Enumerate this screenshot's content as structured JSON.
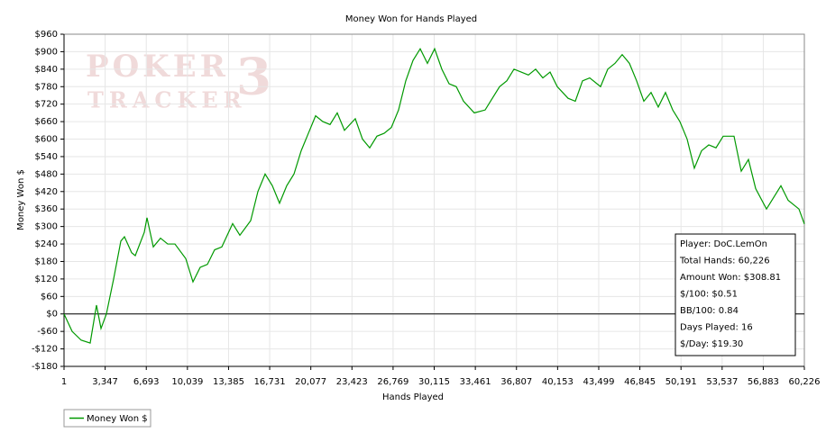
{
  "chart_data": {
    "type": "line",
    "title": "Money Won for Hands Played",
    "xlabel": "Hands Played",
    "ylabel": "Money Won $",
    "watermark": [
      "POKER",
      "TRACKER",
      "3"
    ],
    "x": [
      1,
      661,
      1395,
      2128,
      2642,
      3009,
      3449,
      4036,
      4623,
      4916,
      5503,
      5796,
      6530,
      6750,
      7263,
      7850,
      8437,
      9024,
      9904,
      10491,
      11078,
      11664,
      12251,
      12838,
      13718,
      14305,
      15185,
      15772,
      16359,
      16946,
      17532,
      18119,
      18706,
      19293,
      19880,
      20467,
      21054,
      21640,
      22227,
      22814,
      23694,
      24281,
      24868,
      25455,
      26042,
      26628,
      27215,
      27802,
      28389,
      28976,
      29563,
      30149,
      30736,
      31323,
      31910,
      32497,
      33377,
      34257,
      34844,
      35431,
      36018,
      36605,
      37192,
      37778,
      38365,
      38952,
      39539,
      40126,
      41006,
      41593,
      42180,
      42767,
      43647,
      44234,
      44821,
      45407,
      45994,
      46581,
      47168,
      47755,
      48342,
      48929,
      49516,
      50102,
      50689,
      51276,
      51863,
      52450,
      53037,
      53624,
      54504,
      55091,
      55678,
      56265,
      57145,
      58026,
      58319,
      58906,
      59786,
      60226
    ],
    "series": [
      {
        "name": "Money Won $",
        "color": "#009900",
        "values": [
          0,
          -60,
          -90,
          -100,
          30,
          -50,
          0,
          120,
          250,
          265,
          210,
          200,
          280,
          330,
          230,
          260,
          240,
          240,
          190,
          110,
          160,
          170,
          220,
          230,
          310,
          270,
          320,
          420,
          480,
          440,
          380,
          440,
          480,
          560,
          620,
          680,
          660,
          650,
          690,
          630,
          670,
          600,
          570,
          610,
          620,
          640,
          700,
          800,
          870,
          910,
          860,
          910,
          840,
          790,
          780,
          730,
          690,
          700,
          740,
          780,
          800,
          840,
          830,
          820,
          840,
          810,
          830,
          780,
          740,
          730,
          800,
          810,
          780,
          840,
          860,
          890,
          860,
          800,
          730,
          760,
          710,
          760,
          700,
          660,
          600,
          500,
          560,
          580,
          570,
          610,
          610,
          490,
          530,
          430,
          360,
          420,
          440,
          390,
          360,
          308.81
        ]
      }
    ],
    "xlim": [
      1,
      60226
    ],
    "xticks": [
      1,
      {
        "value": 3347,
        "label": "3,347"
      },
      {
        "value": 6693,
        "label": "6,693"
      },
      {
        "value": 10039,
        "label": "10,039"
      },
      {
        "value": 13385,
        "label": "13,385"
      },
      {
        "value": 16731,
        "label": "16,731"
      },
      {
        "value": 20077,
        "label": "20,077"
      },
      {
        "value": 23423,
        "label": "23,423"
      },
      {
        "value": 26769,
        "label": "26,769"
      },
      {
        "value": 30115,
        "label": "30,115"
      },
      {
        "value": 33461,
        "label": "33,461"
      },
      {
        "value": 36807,
        "label": "36,807"
      },
      {
        "value": 40153,
        "label": "40,153"
      },
      {
        "value": 43499,
        "label": "43,499"
      },
      {
        "value": 46845,
        "label": "46,845"
      },
      {
        "value": 50191,
        "label": "50,191"
      },
      {
        "value": 53537,
        "label": "53,537"
      },
      {
        "value": 56883,
        "label": "56,883"
      },
      {
        "value": 60226,
        "label": "60,226"
      }
    ],
    "ylim": [
      -180,
      960
    ],
    "yticks": [
      {
        "value": -180,
        "label": "-$180"
      },
      {
        "value": -120,
        "label": "-$120"
      },
      {
        "value": -60,
        "label": "-$60"
      },
      {
        "value": 0,
        "label": "$0"
      },
      {
        "value": 60,
        "label": "$60"
      },
      {
        "value": 120,
        "label": "$120"
      },
      {
        "value": 180,
        "label": "$180"
      },
      {
        "value": 240,
        "label": "$240"
      },
      {
        "value": 300,
        "label": "$300"
      },
      {
        "value": 360,
        "label": "$360"
      },
      {
        "value": 420,
        "label": "$420"
      },
      {
        "value": 480,
        "label": "$480"
      },
      {
        "value": 540,
        "label": "$540"
      },
      {
        "value": 600,
        "label": "$600"
      },
      {
        "value": 660,
        "label": "$660"
      },
      {
        "value": 720,
        "label": "$720"
      },
      {
        "value": 780,
        "label": "$780"
      },
      {
        "value": 840,
        "label": "$840"
      },
      {
        "value": 900,
        "label": "$900"
      },
      {
        "value": 960,
        "label": "$960"
      }
    ],
    "grid": true,
    "info_box": [
      "Player: DoC.LemOn",
      "Total Hands: 60,226",
      "Amount Won: $308.81",
      "$/100: $0.51",
      "BB/100: 0.84",
      "Days Played: 16",
      "$/Day: $19.30"
    ],
    "legend": "bottom-left"
  }
}
